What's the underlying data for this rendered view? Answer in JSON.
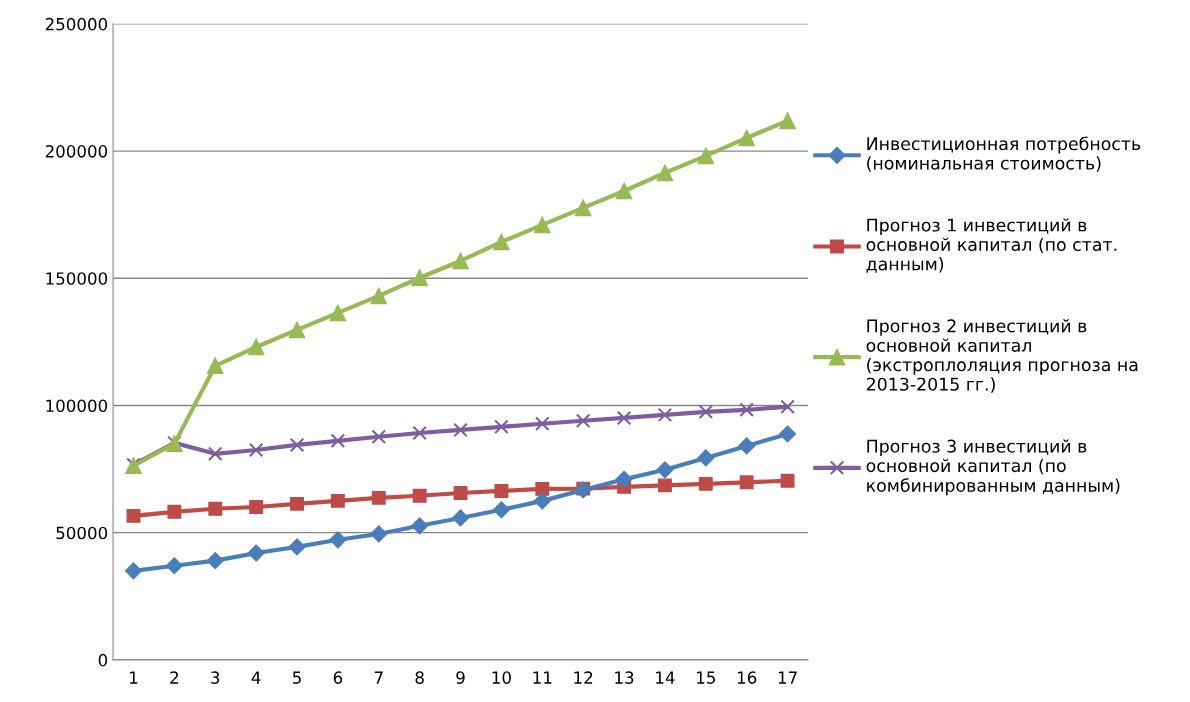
{
  "chart_data": {
    "type": "line",
    "categories": [
      "1",
      "2",
      "3",
      "4",
      "5",
      "6",
      "7",
      "8",
      "9",
      "10",
      "11",
      "12",
      "13",
      "14",
      "15",
      "16",
      "17"
    ],
    "ylim": [
      0,
      250000
    ],
    "yticks": [
      0,
      50000,
      100000,
      150000,
      200000,
      250000
    ],
    "grid": "y",
    "legend": "right",
    "series": [
      {
        "name": "Инвестиционная потребность (номинальная стоимость)",
        "color": "#4a7ebb",
        "marker": "diamond",
        "values": [
          35000,
          37000,
          39000,
          42000,
          44400,
          47200,
          49500,
          52700,
          55800,
          59000,
          62500,
          66800,
          71000,
          74700,
          79400,
          84100,
          88800
        ]
      },
      {
        "name": "Прогноз 1 инвестиций в основной капитал (по стат. данным)",
        "color": "#be4b48",
        "marker": "square",
        "values": [
          56600,
          58200,
          59400,
          60100,
          61300,
          62500,
          63700,
          64500,
          65600,
          66400,
          67200,
          67300,
          68000,
          68600,
          69200,
          69800,
          70400
        ]
      },
      {
        "name": "Прогноз 2 инвестиций в основной капитал (экстроплоляция прогноза на 2013-2015 гг.)",
        "color": "#98b954",
        "marker": "triangle",
        "values": [
          76300,
          85000,
          115600,
          123000,
          129700,
          136400,
          143100,
          150200,
          156800,
          164300,
          171000,
          177700,
          184300,
          191400,
          198100,
          205200,
          211900
        ]
      },
      {
        "name": "Прогноз 3 инвестиций в основной капитал (по комбинированным данным)",
        "color": "#7d5fa0",
        "marker": "cross",
        "values": [
          76700,
          85300,
          81000,
          82500,
          84500,
          86100,
          87700,
          89200,
          90400,
          91600,
          92800,
          94000,
          95100,
          96300,
          97500,
          98300,
          99500
        ]
      }
    ]
  }
}
